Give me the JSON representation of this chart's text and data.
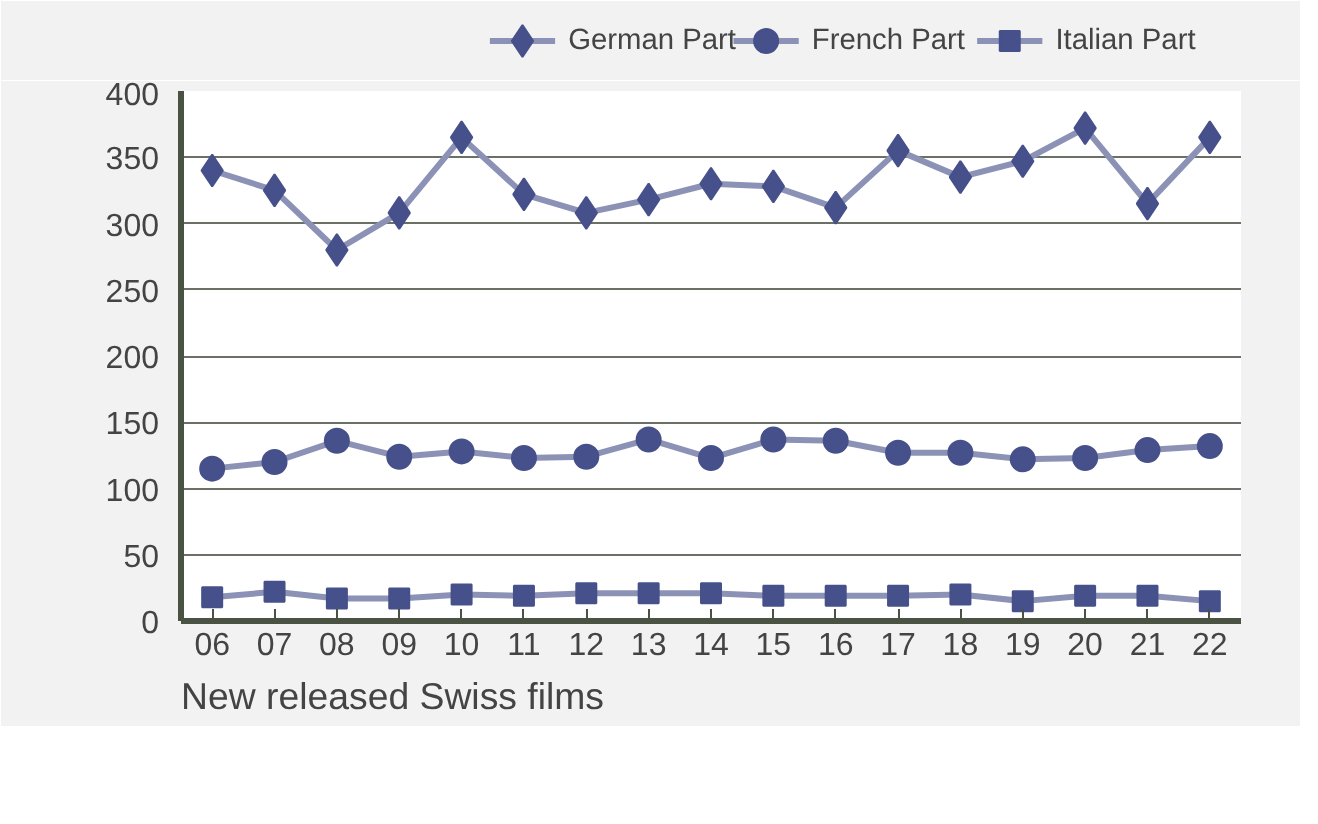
{
  "chart_data": {
    "type": "line",
    "title": "New released Swiss films",
    "categories": [
      "06",
      "07",
      "08",
      "09",
      "10",
      "11",
      "12",
      "13",
      "14",
      "15",
      "16",
      "17",
      "18",
      "19",
      "20",
      "21",
      "22"
    ],
    "series": [
      {
        "name": "German Part",
        "color": "#46508a",
        "marker": "diamond",
        "values": [
          340,
          325,
          280,
          308,
          365,
          322,
          308,
          318,
          330,
          328,
          312,
          355,
          335,
          347,
          372,
          315,
          365
        ]
      },
      {
        "name": "French Part",
        "color": "#46508a",
        "marker": "circle",
        "values": [
          115,
          120,
          136,
          124,
          128,
          123,
          124,
          137,
          123,
          137,
          136,
          127,
          127,
          122,
          123,
          129,
          132
        ]
      },
      {
        "name": "Italian Part",
        "color": "#46508a",
        "marker": "square",
        "values": [
          18,
          22,
          17,
          17,
          20,
          19,
          21,
          21,
          21,
          19,
          19,
          19,
          20,
          15,
          19,
          19,
          15
        ]
      }
    ],
    "ylim": [
      0,
      400
    ],
    "yticks": [
      0,
      50,
      100,
      150,
      200,
      250,
      300,
      350,
      400
    ],
    "grid": "y",
    "legend": "top right",
    "line_style": "solid"
  }
}
